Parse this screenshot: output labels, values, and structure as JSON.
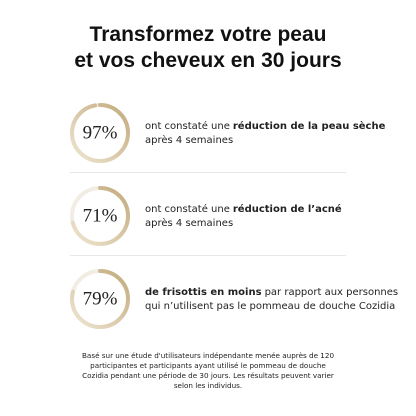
{
  "title_lines": [
    "Transformez votre peau",
    "et vos cheveux en 30 jours"
  ],
  "ring_max": 100,
  "stats": [
    {
      "value": 97,
      "label": "97%",
      "lines": [
        [
          {
            "text": "ont constaté une",
            "bold": false
          },
          {
            "text": "réduction de la peau sèche",
            "bold": true
          }
        ],
        [
          {
            "text": "après 4 semaines",
            "bold": false
          }
        ]
      ]
    },
    {
      "value": 71,
      "label": "71%",
      "lines": [
        [
          {
            "text": "ont constaté une",
            "bold": false
          },
          {
            "text": "réduction de l’acné",
            "bold": true
          }
        ],
        [
          {
            "text": "après 4 semaines",
            "bold": false
          }
        ]
      ]
    },
    {
      "value": 79,
      "label": "79%",
      "lines": [
        [
          {
            "text": "de frisottis en moins",
            "bold": true
          },
          {
            "text": "par rapport aux personnes",
            "bold": false
          }
        ],
        [
          {
            "text": "qui n’utilisent pas le pommeau de douche Cozidia",
            "bold": false
          }
        ]
      ]
    }
  ],
  "footnote_lines": [
    "Basé sur une étude d'utilisateurs indépendante menée auprès de 120",
    "participantes et participants ayant utilisé le pommeau de douche",
    "Cozidia pendant une période de 30 jours. Les résultats peuvent varier",
    "selon les individus."
  ]
}
